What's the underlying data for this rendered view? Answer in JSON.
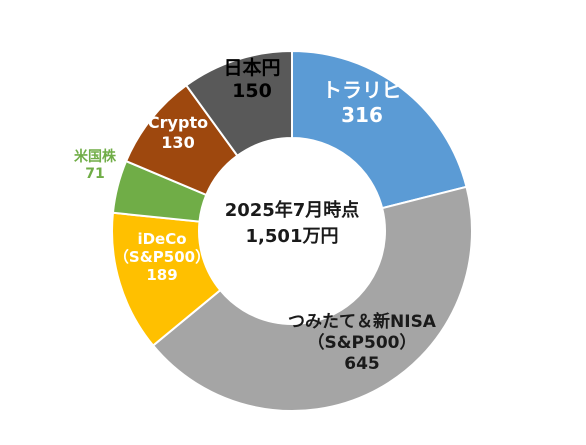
{
  "chart_data": {
    "type": "pie",
    "variant": "donut",
    "center_label": {
      "line1": "2025年7月時点",
      "line2": "1,501万円"
    },
    "slices": [
      {
        "key": "torarepi",
        "name": "トラリピ",
        "name_lines": [
          "トラリピ"
        ],
        "value": 316,
        "value_text": "316",
        "color": "#5b9bd5",
        "label_color": "#ffffff",
        "label_position": "inside"
      },
      {
        "key": "tsumitate",
        "name": "つみたて＆新NISA（S&P500）",
        "name_lines": [
          "つみたて＆新NISA",
          "（S&P500）"
        ],
        "value": 645,
        "value_text": "645",
        "color": "#a5a5a5",
        "label_color": "#1a1a1a",
        "label_position": "inside"
      },
      {
        "key": "ideco",
        "name": "iDeCo（S&P500）",
        "name_lines": [
          "iDeCo",
          "（S&P500）"
        ],
        "value": 189,
        "value_text": "189",
        "color": "#ffc000",
        "label_color": "#ffffff",
        "label_position": "inside"
      },
      {
        "key": "us-stock",
        "name": "米国株",
        "name_lines": [
          "米国株"
        ],
        "value": 71,
        "value_text": "71",
        "color": "#70ad47",
        "label_color": "#70ad47",
        "label_position": "outside"
      },
      {
        "key": "crypto",
        "name": "Crypto",
        "name_lines": [
          "Crypto"
        ],
        "value": 130,
        "value_text": "130",
        "color": "#9e480e",
        "label_color": "#ffffff",
        "label_position": "inside"
      },
      {
        "key": "jpy",
        "name": "日本円",
        "name_lines": [
          "日本円"
        ],
        "value": 150,
        "value_text": "150",
        "color": "#595959",
        "label_color": "#000000",
        "label_position": "inside"
      }
    ],
    "start": "12 o'clock",
    "direction": "clockwise",
    "legend": "none"
  }
}
